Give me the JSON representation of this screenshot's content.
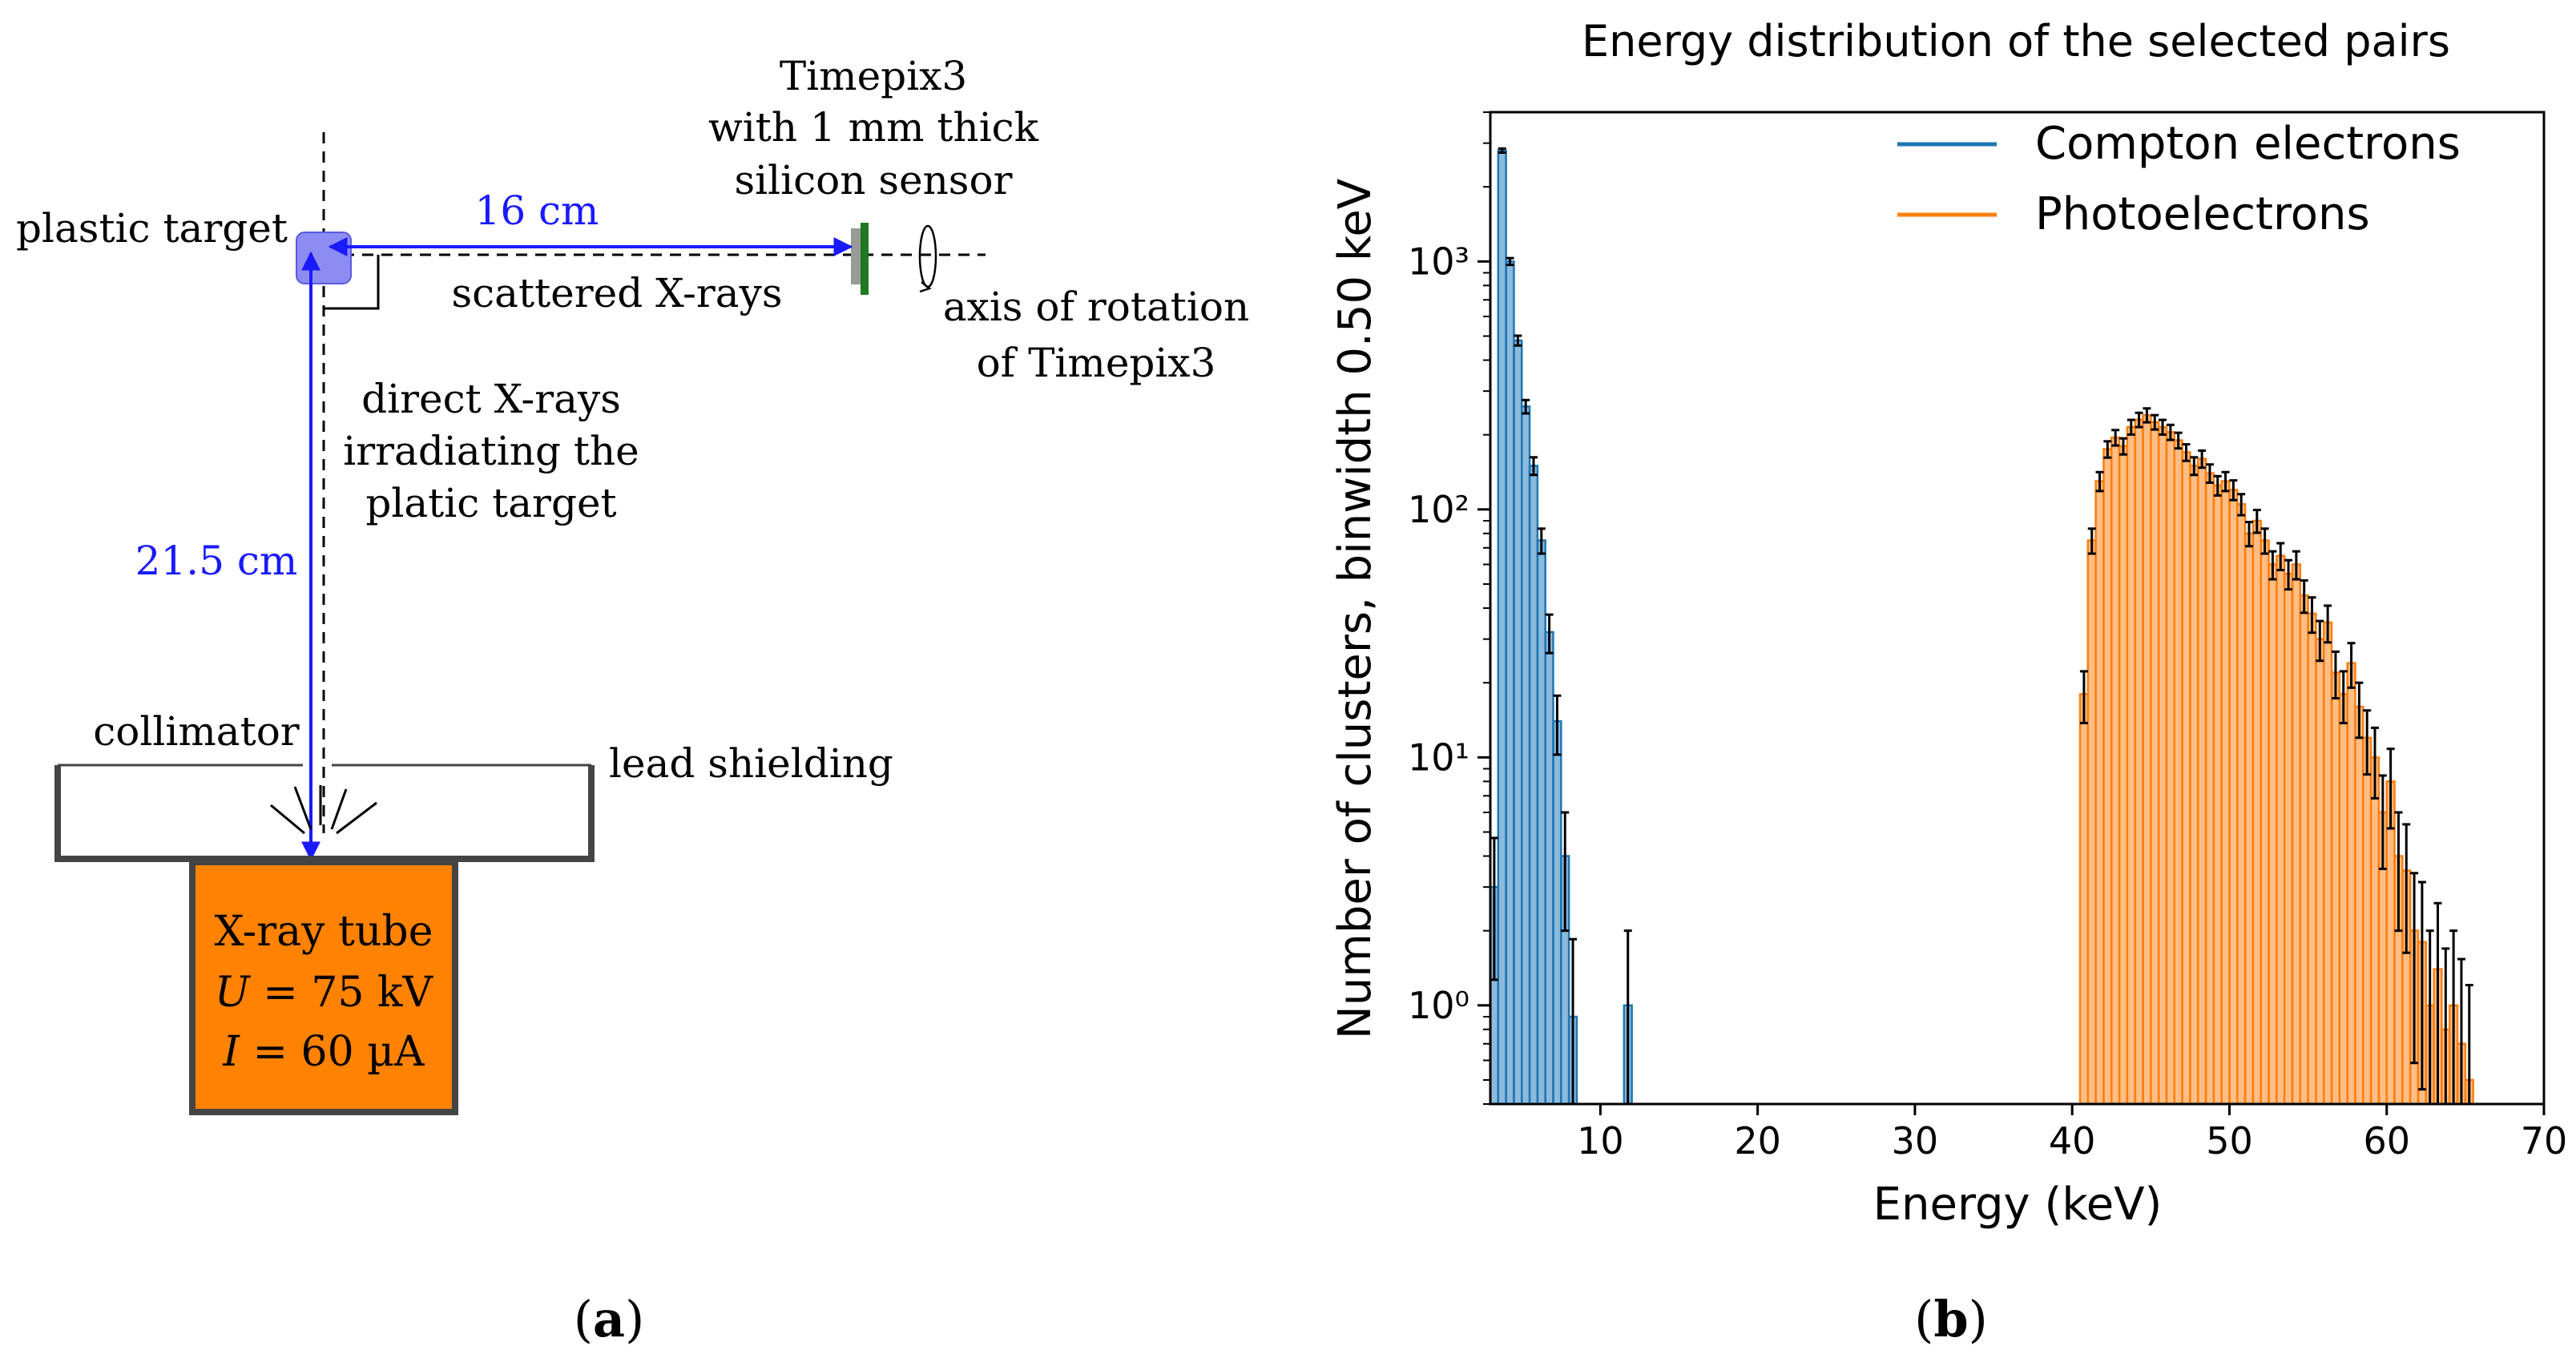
{
  "colors": {
    "blue_arrow": "#1a1aff",
    "target_fill": "#8c8cf2",
    "tube_fill": "#ff8200",
    "sensor_green": "#1f7a1f",
    "compton_line": "#1f77b4",
    "compton_fill": "#8cbadd",
    "photo_line": "#ff7f0e",
    "photo_fill": "#ffbe86",
    "errorbar": "#000000"
  },
  "panel_a": {
    "caption_open": "(",
    "caption_letter": "a",
    "caption_close": ")",
    "timepix_line1": "Timepix3",
    "timepix_line2": "with 1 mm thick",
    "timepix_line3": "silicon sensor",
    "plastic_target": "plastic target",
    "distance_horizontal": "16 cm",
    "scattered_label": "scattered X-rays",
    "rotation_line1": "axis of rotation",
    "rotation_line2": "of Timepix3",
    "direct_line1": "direct X-rays",
    "direct_line2": "irradiating the",
    "direct_line3": "platic target",
    "distance_vertical": "21.5 cm",
    "collimator": "collimator",
    "lead_shielding": "lead shielding",
    "tube_line1": "X-ray tube",
    "tube_u_symbol": "U",
    "tube_u_value": " = 75 kV",
    "tube_i_symbol": "I",
    "tube_i_value": " = 60 µA"
  },
  "panel_b": {
    "caption_open": "(",
    "caption_letter": "b",
    "caption_close": ")"
  },
  "chart_data": {
    "type": "bar",
    "title": "Energy distribution of the selected pairs",
    "xlabel": "Energy (keV)",
    "ylabel": "Number of clusters, binwidth 0.50 keV",
    "xlim": [
      3,
      70
    ],
    "ylim": [
      0.4,
      4000
    ],
    "yscale": "log",
    "bin_width": 0.5,
    "legend_position": "top-right",
    "xticks": [
      10,
      20,
      30,
      40,
      50,
      60,
      70
    ],
    "xtick_labels": [
      "10",
      "20",
      "30",
      "40",
      "50",
      "60",
      "70"
    ],
    "yticks": [
      1,
      10,
      100,
      1000
    ],
    "ytick_labels": [
      "10⁰",
      "10¹",
      "10²",
      "10³"
    ],
    "series": [
      {
        "name": "Compton electrons",
        "bin_starts": [
          3.0,
          3.5,
          4.0,
          4.5,
          5.0,
          5.5,
          6.0,
          6.5,
          7.0,
          7.5,
          8.0,
          11.5
        ],
        "values": [
          3,
          2800,
          1000,
          480,
          260,
          150,
          75,
          32,
          14,
          4,
          0.9,
          1
        ]
      },
      {
        "name": "Photoelectrons",
        "bin_starts": [
          40.5,
          41.0,
          41.5,
          42.0,
          42.5,
          43.0,
          43.5,
          44.0,
          44.5,
          45.0,
          45.5,
          46.0,
          46.5,
          47.0,
          47.5,
          48.0,
          48.5,
          49.0,
          49.5,
          50.0,
          50.5,
          51.0,
          51.5,
          52.0,
          52.5,
          53.0,
          53.5,
          54.0,
          54.5,
          55.0,
          55.5,
          56.0,
          56.5,
          57.0,
          57.5,
          58.0,
          58.5,
          59.0,
          59.5,
          60.0,
          60.5,
          61.0,
          61.5,
          62.0,
          62.5,
          63.0,
          63.5,
          64.0,
          64.5,
          65.0
        ],
        "values": [
          18,
          75,
          130,
          175,
          195,
          180,
          215,
          230,
          240,
          225,
          215,
          205,
          190,
          170,
          150,
          160,
          140,
          125,
          130,
          120,
          105,
          80,
          90,
          75,
          60,
          65,
          55,
          60,
          45,
          38,
          30,
          35,
          22,
          18,
          24,
          16,
          12,
          10,
          6,
          8,
          4,
          3.5,
          2,
          1.8,
          1,
          1.4,
          0.8,
          1,
          0.7,
          0.5
        ]
      }
    ]
  }
}
